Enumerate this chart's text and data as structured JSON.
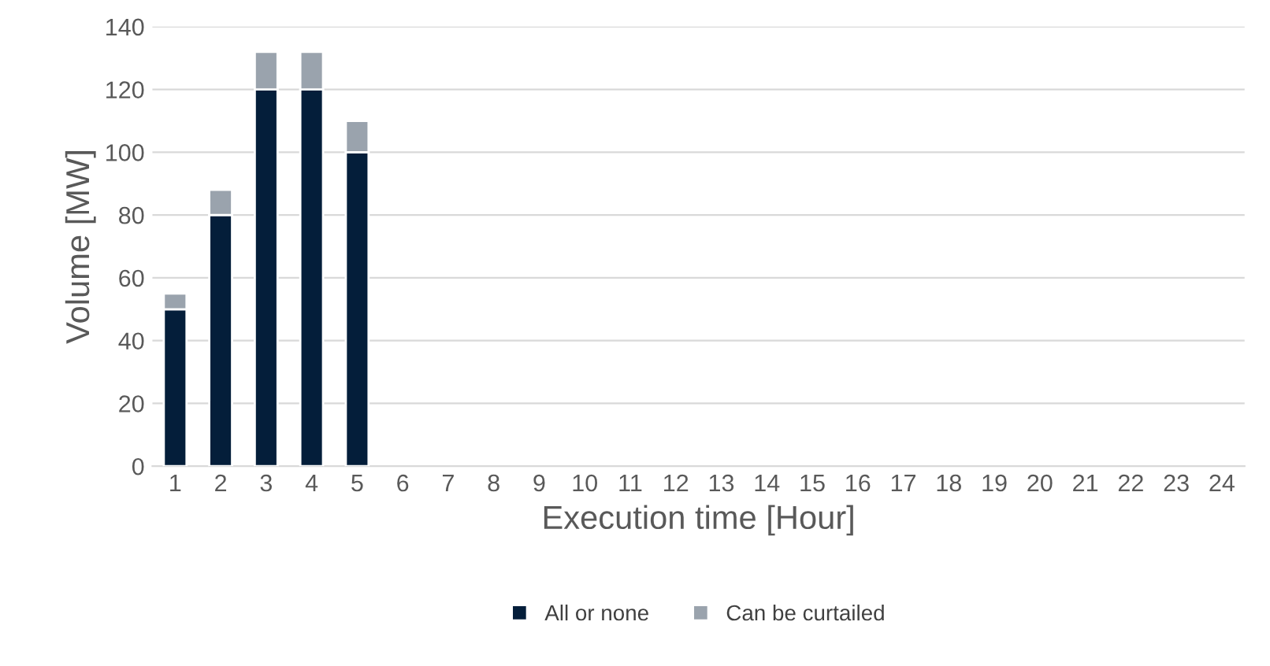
{
  "chart_data": {
    "type": "bar",
    "stacked": true,
    "xlabel": "Execution time [Hour]",
    "ylabel": "Volume [MW]",
    "categories": [
      "1",
      "2",
      "3",
      "4",
      "5",
      "6",
      "7",
      "8",
      "9",
      "10",
      "11",
      "12",
      "13",
      "14",
      "15",
      "16",
      "17",
      "18",
      "19",
      "20",
      "21",
      "22",
      "23",
      "24"
    ],
    "series": [
      {
        "name": "All or none",
        "color": "#041e3a",
        "values": [
          50,
          80,
          120,
          120,
          100,
          null,
          null,
          null,
          null,
          null,
          null,
          null,
          null,
          null,
          null,
          null,
          null,
          null,
          null,
          null,
          null,
          null,
          null,
          null
        ]
      },
      {
        "name": "Can be curtailed",
        "color": "#9aa3ad",
        "values": [
          5,
          8,
          12,
          12,
          10,
          null,
          null,
          null,
          null,
          null,
          null,
          null,
          null,
          null,
          null,
          null,
          null,
          null,
          null,
          null,
          null,
          null,
          null,
          null
        ]
      }
    ],
    "ylim": [
      0,
      140
    ],
    "yticks": [
      0,
      20,
      40,
      60,
      80,
      100,
      120,
      140
    ],
    "grid": "y",
    "legend": "bottom"
  }
}
